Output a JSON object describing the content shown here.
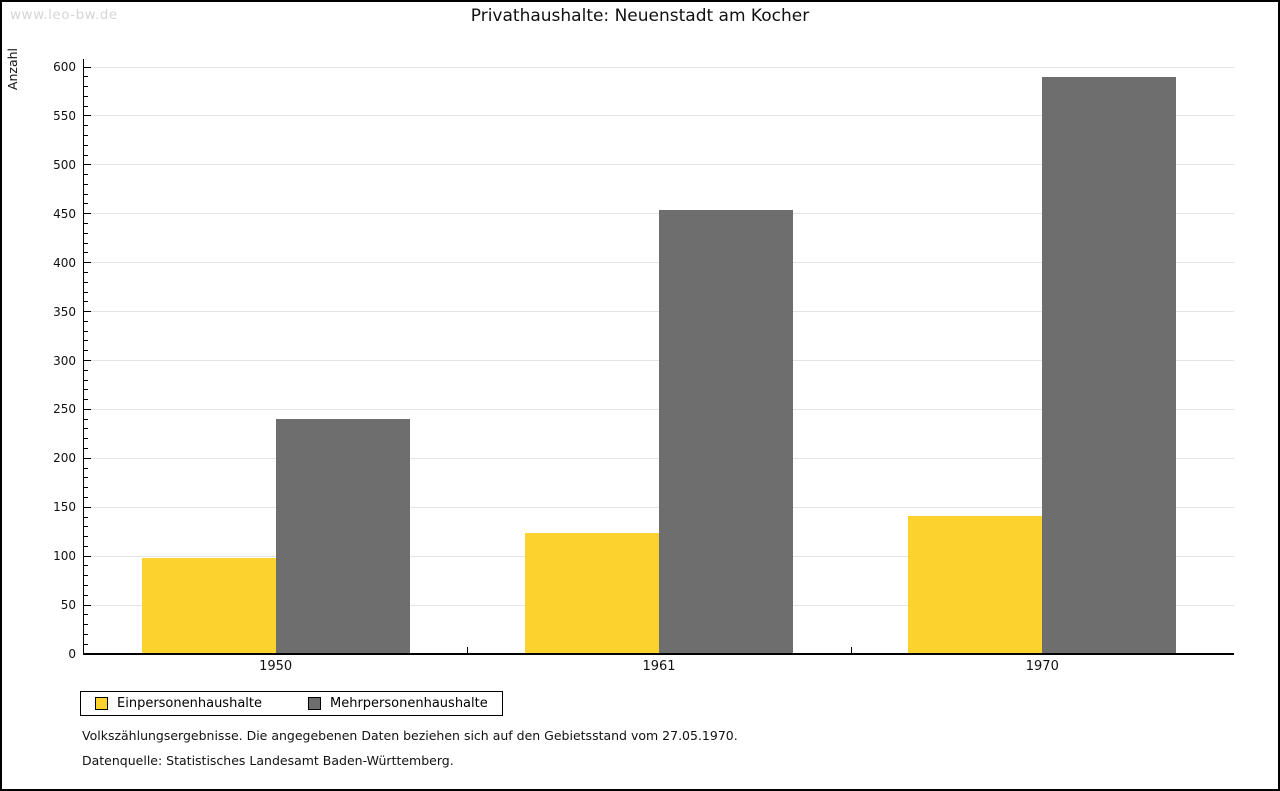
{
  "watermark": "www.leo-bw.de",
  "title": "Privathaushalte: Neuenstadt am Kocher",
  "chart_data": {
    "type": "bar",
    "title": "Privathaushalte: Neuenstadt am Kocher",
    "categories": [
      "1950",
      "1961",
      "1970"
    ],
    "series": [
      {
        "name": "Einpersonenhaushalte",
        "color": "#FCD32E",
        "values": [
          98,
          124,
          141
        ]
      },
      {
        "name": "Mehrpersonenhaushalte",
        "color": "#6E6E6E",
        "values": [
          240,
          454,
          590
        ]
      }
    ],
    "xlabel": "",
    "ylabel": "Anzahl",
    "ylim": [
      0,
      600
    ],
    "ytick_step": 50,
    "yminor_step": 10,
    "grid": "horizontal",
    "gridline_color": "#E4E4E4",
    "legend_position": "bottom-left"
  },
  "footer": {
    "line1": "Volkszählungsergebnisse. Die angegebenen Daten beziehen sich auf den Gebietsstand vom 27.05.1970.",
    "line2": "Datenquelle: Statistisches Landesamt Baden-Württemberg."
  },
  "colors": {
    "axis": "#000000",
    "watermark": "#D5D5D5",
    "background": "#FFFFFF"
  }
}
